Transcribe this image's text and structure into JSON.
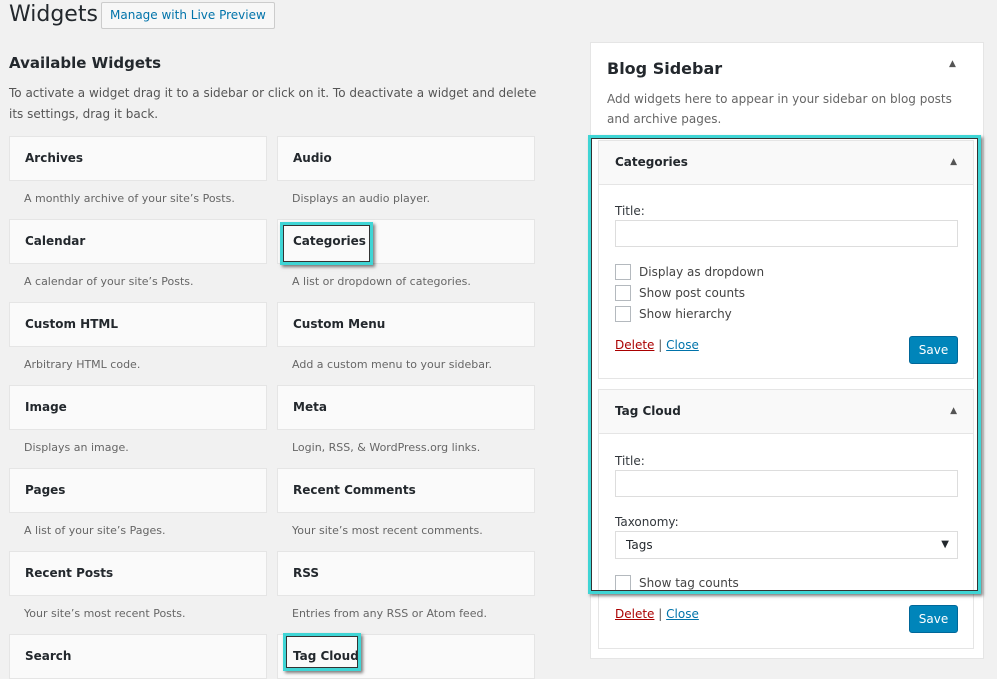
{
  "header": {
    "title": "Widgets",
    "live_preview": "Manage with Live Preview"
  },
  "available": {
    "title": "Available Widgets",
    "intro": "To activate a widget drag it to a sidebar or click on it. To deactivate a widget and delete its settings, drag it back.",
    "widgets": [
      {
        "name": "Archives",
        "desc": "A monthly archive of your site’s Posts."
      },
      {
        "name": "Audio",
        "desc": "Displays an audio player."
      },
      {
        "name": "Calendar",
        "desc": "A calendar of your site’s Posts."
      },
      {
        "name": "Categories",
        "desc": "A list or dropdown of categories."
      },
      {
        "name": "Custom HTML",
        "desc": "Arbitrary HTML code."
      },
      {
        "name": "Custom Menu",
        "desc": "Add a custom menu to your sidebar."
      },
      {
        "name": "Image",
        "desc": "Displays an image."
      },
      {
        "name": "Meta",
        "desc": "Login, RSS, & WordPress.org links."
      },
      {
        "name": "Pages",
        "desc": "A list of your site’s Pages."
      },
      {
        "name": "Recent Comments",
        "desc": "Your site’s most recent comments."
      },
      {
        "name": "Recent Posts",
        "desc": "Your site’s most recent Posts."
      },
      {
        "name": "RSS",
        "desc": "Entries from any RSS or Atom feed."
      },
      {
        "name": "Search",
        "desc": ""
      },
      {
        "name": "Tag Cloud",
        "desc": ""
      }
    ]
  },
  "sidebar": {
    "title": "Blog Sidebar",
    "desc": "Add widgets here to appear in your sidebar on blog posts and archive pages.",
    "categories": {
      "title": "Categories",
      "title_label": "Title:",
      "title_value": "",
      "options": [
        "Display as dropdown",
        "Show post counts",
        "Show hierarchy"
      ],
      "delete": "Delete",
      "sep": "|",
      "close": "Close",
      "save": "Save"
    },
    "tagcloud": {
      "title": "Tag Cloud",
      "title_label": "Title:",
      "title_value": "",
      "taxonomy_label": "Taxonomy:",
      "taxonomy_value": "Tags",
      "option": "Show tag counts",
      "delete": "Delete",
      "sep": "|",
      "close": "Close",
      "save": "Save"
    }
  },
  "colors": {
    "highlight": "#3fd5d5",
    "primary": "#0085ba",
    "link": "#0073aa",
    "delete": "#a00"
  }
}
